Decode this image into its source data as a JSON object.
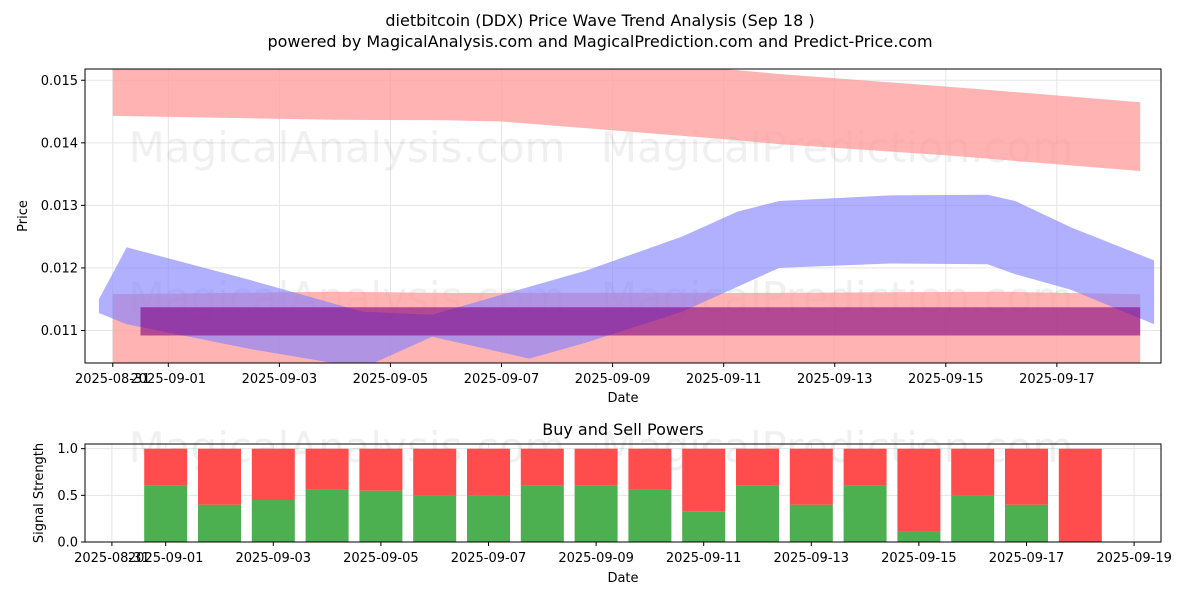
{
  "title_line1": "dietbitcoin (DDX) Price Wave Trend Analysis (Sep 18 )",
  "title_line2": "powered by MagicalAnalysis.com and MagicalPrediction.com and Predict-Price.com",
  "watermarks": [
    "MagicalAnalysis.com",
    "MagicalPrediction.com"
  ],
  "colors": {
    "upper_band": "#ff9999",
    "lower_band": "#ff9999",
    "blue_band": "#8080ff",
    "purple_band": "#800080",
    "buy": "#4caf50",
    "sell": "#ff4d4d",
    "grid": "#e5e5e5"
  },
  "chart_data": [
    {
      "type": "area",
      "title": "",
      "xlabel": "Date",
      "ylabel": "Price",
      "xlim": [
        "2025-08-30T12:00",
        "2025-09-18T21:00"
      ],
      "ylim": [
        0.01048,
        0.01518
      ],
      "grid": true,
      "x_ticks": [
        "2025-08-31",
        "2025-09-01",
        "2025-09-03",
        "2025-09-05",
        "2025-09-07",
        "2025-09-09",
        "2025-09-11",
        "2025-09-13",
        "2025-09-15",
        "2025-09-17"
      ],
      "y_ticks": [
        0.011,
        0.012,
        0.013,
        0.014,
        0.015
      ],
      "series": [
        {
          "name": "",
          "kind": "band",
          "color": "#ff9999",
          "x": [
            "2025-08-31",
            "2025-09-04",
            "2025-09-06",
            "2025-09-07",
            "2025-09-11",
            "2025-09-12",
            "2025-09-15",
            "2025-09-18T12:00"
          ],
          "y_low": [
            0.01443,
            0.01437,
            0.01436,
            0.01434,
            0.01406,
            0.01398,
            0.0138,
            0.01355
          ],
          "y_high": [
            0.01518,
            0.01518,
            0.01518,
            0.01518,
            0.01518,
            0.0151,
            0.0149,
            0.01465
          ]
        },
        {
          "name": "",
          "kind": "band",
          "color": "#ff9999",
          "x": [
            "2025-08-31",
            "2025-09-04",
            "2025-09-06",
            "2025-09-08",
            "2025-09-12",
            "2025-09-16",
            "2025-09-18T12:00"
          ],
          "y_low": [
            0.01048,
            0.01048,
            0.01048,
            0.01048,
            0.01048,
            0.01048,
            0.01048
          ],
          "y_high": [
            0.01158,
            0.01162,
            0.0116,
            0.0116,
            0.0116,
            0.01162,
            0.01158
          ]
        },
        {
          "name": "",
          "kind": "band",
          "color": "#8080ff",
          "x": [
            "2025-08-30T18:00",
            "2025-08-31T06:00",
            "2025-09-02T12:00",
            "2025-09-04T12:00",
            "2025-09-05T18:00",
            "2025-09-07T12:00",
            "2025-09-08T12:00",
            "2025-09-10T06:00",
            "2025-09-11T06:00",
            "2025-09-12",
            "2025-09-14",
            "2025-09-15T18:00",
            "2025-09-16T06:00",
            "2025-09-17T06:00",
            "2025-09-18T18:00"
          ],
          "y_low": [
            0.01128,
            0.0111,
            0.0107,
            0.0104,
            0.0109,
            0.01055,
            0.0108,
            0.0113,
            0.0117,
            0.012,
            0.01207,
            0.01206,
            0.0119,
            0.01165,
            0.0111
          ],
          "y_high": [
            0.0115,
            0.01233,
            0.0118,
            0.0113,
            0.01125,
            0.0117,
            0.01195,
            0.0125,
            0.0129,
            0.01307,
            0.01316,
            0.01317,
            0.01307,
            0.01265,
            0.01212
          ]
        },
        {
          "name": "",
          "kind": "band",
          "color": "#800080",
          "x": [
            "2025-08-31T12:00",
            "2025-09-18T12:00"
          ],
          "y_low": [
            0.01092,
            0.01092
          ],
          "y_high": [
            0.01137,
            0.01137
          ]
        }
      ]
    },
    {
      "type": "bar",
      "title": "Buy and Sell Powers",
      "xlabel": "Date",
      "ylabel": "Signal Strength",
      "xlim": [
        "2025-08-30T12:00",
        "2025-09-19T12:00"
      ],
      "ylim": [
        0,
        1.05
      ],
      "grid": true,
      "x_ticks": [
        "2025-08-31",
        "2025-09-01",
        "2025-09-03",
        "2025-09-05",
        "2025-09-07",
        "2025-09-09",
        "2025-09-11",
        "2025-09-13",
        "2025-09-15",
        "2025-09-17",
        "2025-09-19"
      ],
      "y_ticks": [
        0.0,
        0.5,
        1.0
      ],
      "categories": [
        "2025-09-01",
        "2025-09-02",
        "2025-09-03",
        "2025-09-04",
        "2025-09-05",
        "2025-09-06",
        "2025-09-07",
        "2025-09-08",
        "2025-09-09",
        "2025-09-10",
        "2025-09-11",
        "2025-09-12",
        "2025-09-13",
        "2025-09-14",
        "2025-09-15",
        "2025-09-16",
        "2025-09-17",
        "2025-09-18"
      ],
      "series": [
        {
          "name": "",
          "color": "#4caf50",
          "values": [
            0.61,
            0.4,
            0.45,
            0.56,
            0.55,
            0.5,
            0.5,
            0.61,
            0.61,
            0.56,
            0.33,
            0.61,
            0.4,
            0.61,
            0.11,
            0.5,
            0.4,
            0.0
          ]
        },
        {
          "name": "",
          "color": "#ff4d4d",
          "values": [
            0.39,
            0.6,
            0.55,
            0.44,
            0.45,
            0.5,
            0.5,
            0.39,
            0.39,
            0.44,
            0.67,
            0.39,
            0.6,
            0.39,
            0.89,
            0.5,
            0.6,
            1.0
          ]
        }
      ]
    }
  ]
}
